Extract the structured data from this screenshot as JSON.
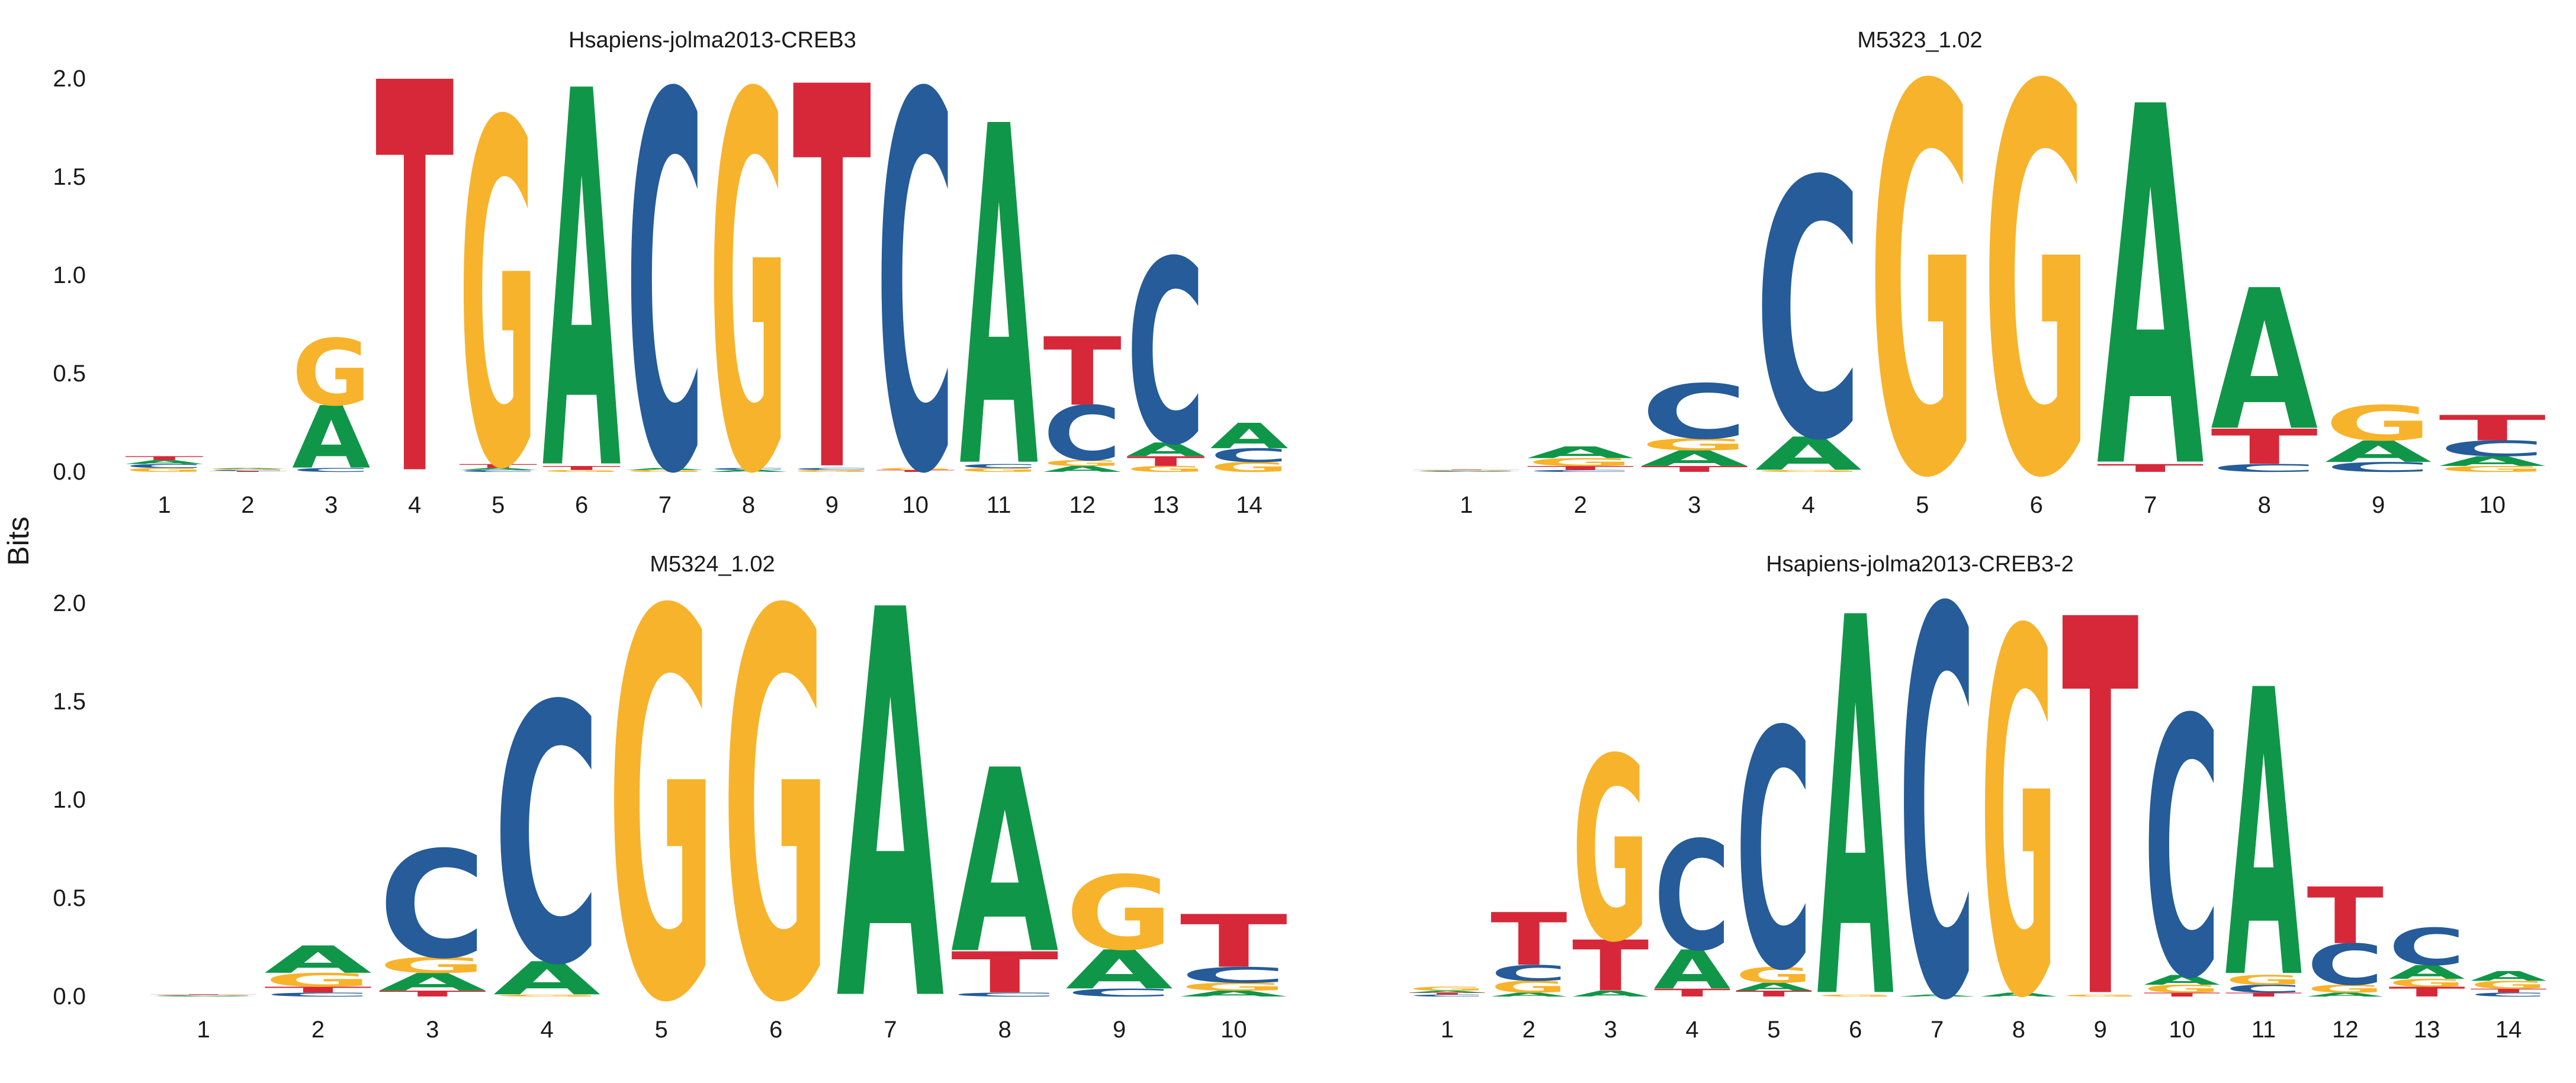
{
  "colors": {
    "A": "#109648",
    "C": "#255C99",
    "G": "#F7B32B",
    "T": "#D62839"
  },
  "ylabel": "Bits",
  "chart_data": [
    {
      "type": "sequence-logo",
      "title": "Hsapiens-jolma2013-CREB3",
      "ylim": [
        0,
        2
      ],
      "yticks": [
        "0.0",
        "0.5",
        "1.0",
        "1.5",
        "2.0"
      ],
      "positions": [
        "1",
        "2",
        "3",
        "4",
        "5",
        "6",
        "7",
        "8",
        "9",
        "10",
        "11",
        "12",
        "13",
        "14"
      ],
      "stacks": [
        [
          [
            "G",
            0.02
          ],
          [
            "C",
            0.02
          ],
          [
            "A",
            0.02
          ],
          [
            "T",
            0.02
          ]
        ],
        [
          [
            "T",
            0.005
          ],
          [
            "C",
            0.005
          ],
          [
            "G",
            0.005
          ],
          [
            "A",
            0.005
          ]
        ],
        [
          [
            "C",
            0.02
          ],
          [
            "A",
            0.32
          ],
          [
            "G",
            0.34
          ]
        ],
        [
          [
            "T",
            2.0
          ]
        ],
        [
          [
            "C",
            0.01
          ],
          [
            "A",
            0.01
          ],
          [
            "T",
            0.02
          ],
          [
            "G",
            1.76
          ]
        ],
        [
          [
            "G",
            0.01
          ],
          [
            "T",
            0.02
          ],
          [
            "A",
            1.93
          ]
        ],
        [
          [
            "G",
            0.01
          ],
          [
            "A",
            0.01
          ],
          [
            "C",
            1.92
          ]
        ],
        [
          [
            "A",
            0.01
          ],
          [
            "C",
            0.01
          ],
          [
            "G",
            1.92
          ]
        ],
        [
          [
            "G",
            0.01
          ],
          [
            "C",
            0.01
          ],
          [
            "T",
            1.96
          ]
        ],
        [
          [
            "T",
            0.01
          ],
          [
            "G",
            0.01
          ],
          [
            "C",
            1.92
          ]
        ],
        [
          [
            "G",
            0.02
          ],
          [
            "C",
            0.02
          ],
          [
            "A",
            1.74
          ]
        ],
        [
          [
            "A",
            0.03
          ],
          [
            "G",
            0.03
          ],
          [
            "C",
            0.28
          ],
          [
            "T",
            0.35
          ]
        ],
        [
          [
            "G",
            0.03
          ],
          [
            "T",
            0.05
          ],
          [
            "A",
            0.07
          ],
          [
            "C",
            0.94
          ]
        ],
        [
          [
            "G",
            0.05
          ],
          [
            "C",
            0.07
          ],
          [
            "A",
            0.13
          ]
        ]
      ]
    },
    {
      "type": "sequence-logo",
      "title": "M5323_1.02",
      "ylim": [
        0,
        2
      ],
      "yticks": [
        "0.0",
        "0.5",
        "1.0",
        "1.5",
        "2.0"
      ],
      "positions": [
        "1",
        "2",
        "3",
        "4",
        "5",
        "6",
        "7",
        "8",
        "9",
        "10"
      ],
      "stacks": [
        [
          [
            "A",
            0.003
          ],
          [
            "C",
            0.003
          ],
          [
            "G",
            0.003
          ],
          [
            "T",
            0.003
          ]
        ],
        [
          [
            "C",
            0.01
          ],
          [
            "T",
            0.02
          ],
          [
            "G",
            0.04
          ],
          [
            "A",
            0.06
          ]
        ],
        [
          [
            "T",
            0.03
          ],
          [
            "A",
            0.08
          ],
          [
            "G",
            0.06
          ],
          [
            "C",
            0.28
          ]
        ],
        [
          [
            "G",
            0.01
          ],
          [
            "A",
            0.17
          ],
          [
            "C",
            1.32
          ]
        ],
        [
          [
            "G",
            1.98
          ]
        ],
        [
          [
            "G",
            1.98
          ]
        ],
        [
          [
            "T",
            0.04
          ],
          [
            "A",
            1.84
          ]
        ],
        [
          [
            "C",
            0.04
          ],
          [
            "T",
            0.18
          ],
          [
            "A",
            0.72
          ]
        ],
        [
          [
            "C",
            0.05
          ],
          [
            "A",
            0.11
          ],
          [
            "G",
            0.18
          ]
        ],
        [
          [
            "G",
            0.03
          ],
          [
            "A",
            0.05
          ],
          [
            "C",
            0.08
          ],
          [
            "T",
            0.13
          ]
        ]
      ]
    },
    {
      "type": "sequence-logo",
      "title": "M5324_1.02",
      "ylim": [
        0,
        2
      ],
      "yticks": [
        "0.0",
        "0.5",
        "1.0",
        "1.5",
        "2.0"
      ],
      "positions": [
        "1",
        "2",
        "3",
        "4",
        "5",
        "6",
        "7",
        "8",
        "9",
        "10"
      ],
      "stacks": [
        [
          [
            "A",
            0.003
          ],
          [
            "C",
            0.003
          ],
          [
            "G",
            0.003
          ],
          [
            "T",
            0.003
          ]
        ],
        [
          [
            "C",
            0.02
          ],
          [
            "T",
            0.03
          ],
          [
            "G",
            0.07
          ],
          [
            "A",
            0.14
          ]
        ],
        [
          [
            "T",
            0.03
          ],
          [
            "A",
            0.09
          ],
          [
            "G",
            0.08
          ],
          [
            "C",
            0.55
          ]
        ],
        [
          [
            "G",
            0.01
          ],
          [
            "A",
            0.17
          ],
          [
            "C",
            1.32
          ]
        ],
        [
          [
            "G",
            1.98
          ]
        ],
        [
          [
            "G",
            1.98
          ]
        ],
        [
          [
            "A",
            1.99
          ]
        ],
        [
          [
            "C",
            0.02
          ],
          [
            "T",
            0.21
          ],
          [
            "A",
            0.94
          ]
        ],
        [
          [
            "C",
            0.04
          ],
          [
            "A",
            0.2
          ],
          [
            "G",
            0.38
          ]
        ],
        [
          [
            "A",
            0.03
          ],
          [
            "G",
            0.04
          ],
          [
            "C",
            0.08
          ],
          [
            "T",
            0.27
          ]
        ]
      ]
    },
    {
      "type": "sequence-logo",
      "title": "Hsapiens-jolma2013-CREB3-2",
      "ylim": [
        0,
        2
      ],
      "yticks": [
        "0.0",
        "0.5",
        "1.0",
        "1.5",
        "2.0"
      ],
      "positions": [
        "1",
        "2",
        "3",
        "4",
        "5",
        "6",
        "7",
        "8",
        "9",
        "10",
        "11",
        "12",
        "13",
        "14"
      ],
      "stacks": [
        [
          [
            "C",
            0.01
          ],
          [
            "T",
            0.01
          ],
          [
            "A",
            0.01
          ],
          [
            "G",
            0.02
          ]
        ],
        [
          [
            "A",
            0.02
          ],
          [
            "G",
            0.06
          ],
          [
            "C",
            0.08
          ],
          [
            "T",
            0.27
          ]
        ],
        [
          [
            "A",
            0.03
          ],
          [
            "T",
            0.26
          ],
          [
            "G",
            0.94
          ]
        ],
        [
          [
            "T",
            0.04
          ],
          [
            "A",
            0.2
          ],
          [
            "C",
            0.56
          ]
        ],
        [
          [
            "T",
            0.03
          ],
          [
            "A",
            0.04
          ],
          [
            "G",
            0.08
          ],
          [
            "C",
            1.22
          ]
        ],
        [
          [
            "G",
            0.01
          ],
          [
            "A",
            1.94
          ]
        ],
        [
          [
            "A",
            0.01
          ],
          [
            "C",
            1.98
          ]
        ],
        [
          [
            "A",
            0.02
          ],
          [
            "G",
            1.86
          ]
        ],
        [
          [
            "G",
            0.01
          ],
          [
            "T",
            1.93
          ]
        ],
        [
          [
            "T",
            0.02
          ],
          [
            "G",
            0.04
          ],
          [
            "A",
            0.05
          ],
          [
            "C",
            1.32
          ]
        ],
        [
          [
            "T",
            0.02
          ],
          [
            "C",
            0.04
          ],
          [
            "G",
            0.05
          ],
          [
            "A",
            1.47
          ]
        ],
        [
          [
            "A",
            0.02
          ],
          [
            "G",
            0.04
          ],
          [
            "C",
            0.21
          ],
          [
            "T",
            0.29
          ]
        ],
        [
          [
            "T",
            0.05
          ],
          [
            "G",
            0.04
          ],
          [
            "A",
            0.07
          ],
          [
            "C",
            0.19
          ]
        ],
        [
          [
            "C",
            0.02
          ],
          [
            "T",
            0.02
          ],
          [
            "G",
            0.04
          ],
          [
            "A",
            0.05
          ]
        ]
      ]
    }
  ]
}
